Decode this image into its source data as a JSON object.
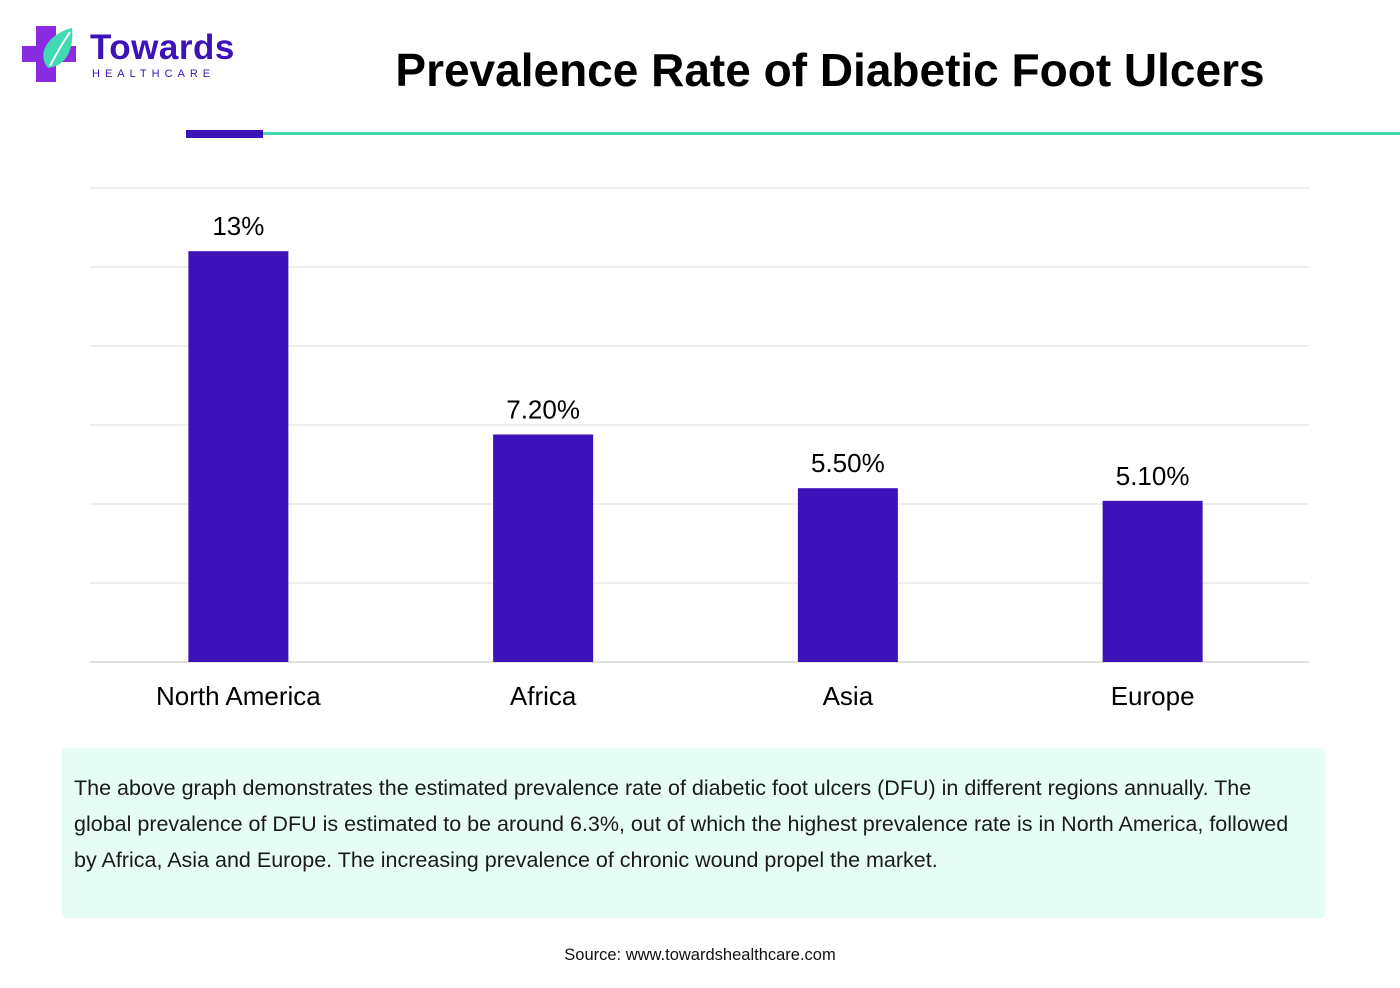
{
  "brand": {
    "name": "Towards",
    "tagline": "HEALTHCARE",
    "primary_color": "#3d12b8",
    "accent_color": "#3fd9b2",
    "icon": "medical-cross-leaf-icon"
  },
  "page_title": "Prevalence Rate of Diabetic Foot Ulcers",
  "chart_data": {
    "type": "bar",
    "title": "Prevalence Rate of Diabetic Foot Ulcers",
    "categories": [
      "North America",
      "Africa",
      "Asia",
      "Europe"
    ],
    "values": [
      13,
      7.2,
      5.5,
      5.1
    ],
    "value_labels": [
      "13%",
      "7.20%",
      "5.50%",
      "5.10%"
    ],
    "unit": "%",
    "xlabel": "",
    "ylabel": "",
    "ylim": [
      0,
      15
    ],
    "grid": true,
    "legend": "none",
    "bar_color": "#3d12b8"
  },
  "note": {
    "text": "The above graph demonstrates the estimated prevalence rate of diabetic foot ulcers (DFU) in different regions annually. The global prevalence of DFU is estimated to be around 6.3%, out of which the highest prevalence rate is in North America, followed by Africa, Asia and Europe. The increasing prevalence of chronic wound propel the market."
  },
  "source": "Source: www.towardshealthcare.com"
}
